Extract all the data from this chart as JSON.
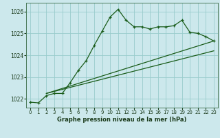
{
  "title": "Graphe pression niveau de la mer (hPa)",
  "bg_color": "#cce8ec",
  "grid_color": "#99cccc",
  "line_color": "#1a5c1a",
  "xlim": [
    -0.5,
    23.5
  ],
  "ylim": [
    1021.6,
    1026.4
  ],
  "yticks": [
    1022,
    1023,
    1024,
    1025,
    1026
  ],
  "xticks": [
    0,
    1,
    2,
    3,
    4,
    5,
    6,
    7,
    8,
    9,
    10,
    11,
    12,
    13,
    14,
    15,
    16,
    17,
    18,
    19,
    20,
    21,
    22,
    23
  ],
  "line1_x": [
    0,
    1,
    2,
    3,
    4,
    5,
    6,
    7,
    8,
    9,
    10,
    11,
    12,
    13,
    14,
    15,
    16,
    17,
    18,
    19,
    20,
    21,
    22,
    23
  ],
  "line1_y": [
    1021.85,
    1021.82,
    1022.15,
    1022.25,
    1022.25,
    1022.75,
    1023.3,
    1023.75,
    1024.45,
    1025.1,
    1025.75,
    1026.1,
    1025.6,
    1025.3,
    1025.3,
    1025.2,
    1025.3,
    1025.3,
    1025.35,
    1025.6,
    1025.05,
    1025.0,
    1024.85,
    1024.65
  ],
  "line2_x": [
    2,
    23
  ],
  "line2_y": [
    1022.25,
    1024.65
  ],
  "line3_x": [
    2,
    23
  ],
  "line3_y": [
    1022.25,
    1024.2
  ]
}
